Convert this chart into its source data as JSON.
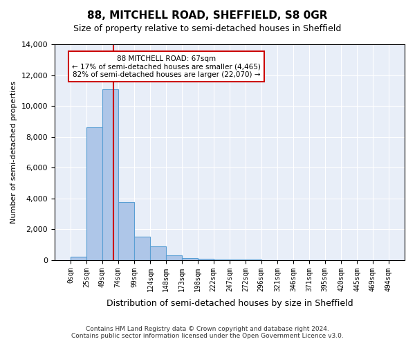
{
  "title1": "88, MITCHELL ROAD, SHEFFIELD, S8 0GR",
  "title2": "Size of property relative to semi-detached houses in Sheffield",
  "xlabel": "Distribution of semi-detached houses by size in Sheffield",
  "ylabel": "Number of semi-detached properties",
  "annotation_line1": "88 MITCHELL ROAD: 67sqm",
  "annotation_line2": "← 17% of semi-detached houses are smaller (4,465)",
  "annotation_line3": "82% of semi-detached houses are larger (22,070) →",
  "footnote1": "Contains HM Land Registry data © Crown copyright and database right 2024.",
  "footnote2": "Contains public sector information licensed under the Open Government Licence v3.0.",
  "property_size": 67,
  "bin_edges": [
    0,
    25,
    49,
    74,
    99,
    124,
    148,
    173,
    198,
    222,
    247,
    272,
    296,
    321,
    346,
    371,
    395,
    420,
    445,
    469,
    494
  ],
  "bar_values": [
    200,
    8600,
    11100,
    3750,
    1500,
    900,
    300,
    150,
    100,
    50,
    30,
    20,
    10,
    5,
    5,
    5,
    3,
    2,
    2,
    1
  ],
  "bar_color": "#aec6e8",
  "bar_edge_color": "#5a9fd4",
  "vline_color": "#cc0000",
  "bg_color": "#e8eef8",
  "annotation_box_color": "#ffffff",
  "annotation_box_edge": "#cc0000",
  "ylim": [
    0,
    14000
  ],
  "yticks": [
    0,
    2000,
    4000,
    6000,
    8000,
    10000,
    12000,
    14000
  ]
}
